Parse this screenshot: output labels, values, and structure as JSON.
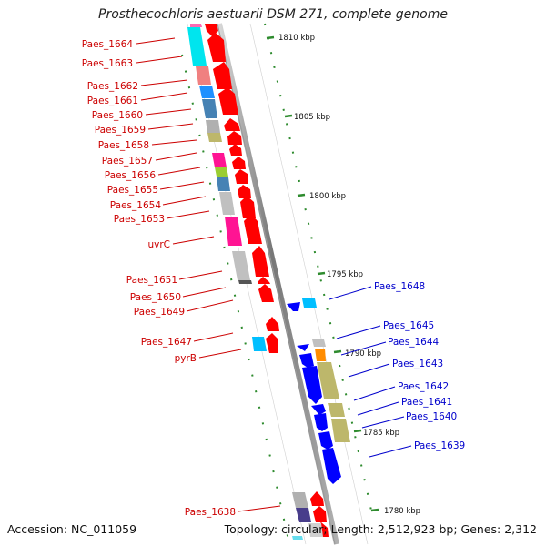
{
  "title": "Prosthecochloris aestuarii DSM 271, complete genome",
  "footer": {
    "accession": "Accession: NC_011059",
    "summary": "Topology: circular; Length: 2,512,923 bp; Genes: 2,312"
  },
  "colors": {
    "label_left": "#cc0000",
    "label_right": "#0000cc",
    "backbone": "#888888",
    "ruler": "#2e8b2e",
    "forward_gene": "#ff0000",
    "reverse_gene": "#0000ff"
  },
  "ticks": [
    "1810 kbp",
    "1805 kbp",
    "1800 kbp",
    "1795 kbp",
    "1790 kbp",
    "1785 kbp",
    "1780 kbp"
  ],
  "left_labels": [
    "Paes_1664",
    "Paes_1663",
    "Paes_1662",
    "Paes_1661",
    "Paes_1660",
    "Paes_1659",
    "Paes_1658",
    "Paes_1657",
    "Paes_1656",
    "Paes_1655",
    "Paes_1654",
    "Paes_1653",
    "uvrC",
    "Paes_1651",
    "Paes_1650",
    "Paes_1649",
    "Paes_1647",
    "pyrB",
    "Paes_1638"
  ],
  "right_labels": [
    "Paes_1648",
    "Paes_1645",
    "Paes_1644",
    "Paes_1643",
    "Paes_1642",
    "Paes_1641",
    "Paes_1640",
    "Paes_1639"
  ]
}
